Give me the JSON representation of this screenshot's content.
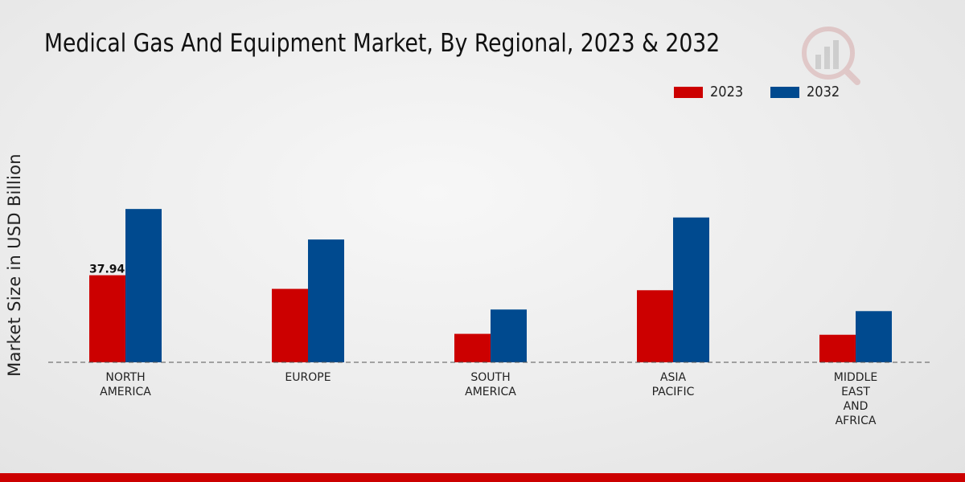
{
  "chart_data": {
    "type": "bar",
    "title": "Medical Gas And Equipment Market, By Regional, 2023 & 2032",
    "ylabel": "Market Size in USD Billion",
    "xlabel": "",
    "categories": [
      [
        "NORTH",
        "AMERICA"
      ],
      [
        "EUROPE"
      ],
      [
        "SOUTH",
        "AMERICA"
      ],
      [
        "ASIA",
        "PACIFIC"
      ],
      [
        "MIDDLE",
        "EAST",
        "AND",
        "AFRICA"
      ]
    ],
    "series": [
      {
        "name": "2023",
        "color": "#cc0000",
        "values": [
          37.94,
          32.0,
          12.4,
          31.4,
          12.0
        ]
      },
      {
        "name": "2032",
        "color": "#004a8f",
        "values": [
          66.8,
          53.5,
          23.0,
          63.1,
          22.3
        ]
      }
    ],
    "data_labels": [
      {
        "series": 0,
        "index": 0,
        "text": "37.94"
      }
    ],
    "ylim": [
      0,
      105
    ],
    "legend": "top-right",
    "grid": false
  }
}
